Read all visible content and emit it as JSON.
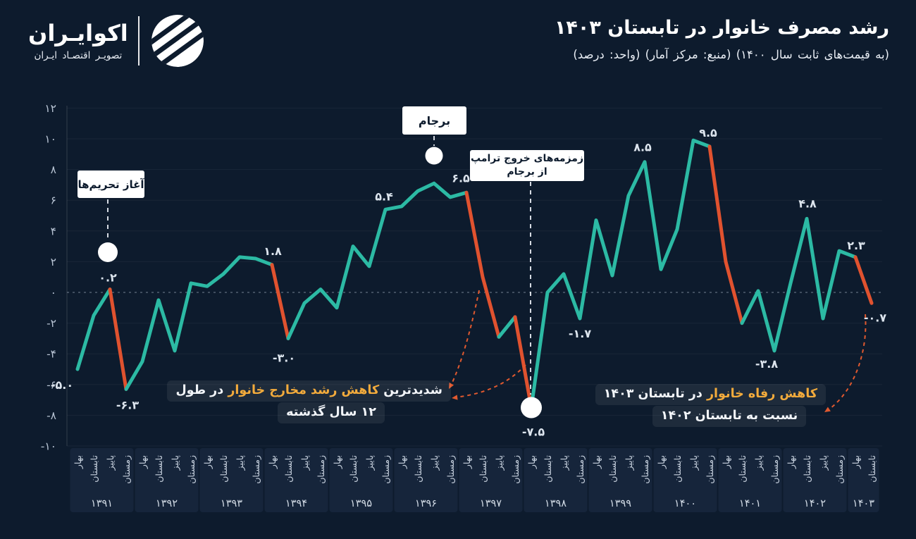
{
  "page": {
    "background": "#0d1b2d",
    "accent_teal": "#2cbaa4",
    "accent_red": "#e0522f",
    "accent_yellow": "#f3ab3c"
  },
  "header": {
    "title": "رشد مصرف خانوار در تابستان ۱۴۰۳",
    "subtitle": "(به قیمت‌های ثابت سال ۱۴۰۰)  (منبع: مرکز آمار)  (واحد: درصد)",
    "logo": {
      "name": "اکوایـران",
      "tagline": "تصویـر اقتصـاد ایـران"
    }
  },
  "annotations": {
    "sanctions": {
      "label": "آغاز تحریم‌ها",
      "dot_point_index": 2
    },
    "jcpoa": {
      "label": "برجام",
      "dot_point_index": 22
    },
    "trump": {
      "line1": "زمزمه‌های خروج ترامپ",
      "line2": "از برجام",
      "dot_point_index": 28
    },
    "bottom_left": {
      "pre": "شدیدترین ",
      "highlight": "کاهش رشد مخارج خانوار",
      "post": " در طول",
      "line2": "۱۲ سال گذشته"
    },
    "bottom_right": {
      "highlight": "کاهش رفاه خانوار",
      "post": " در تابستان ۱۴۰۳",
      "line2": "نسبت به تابستان ۱۴۰۲"
    }
  },
  "chart_data": {
    "type": "line",
    "title": "رشد مصرف خانوار در تابستان ۱۴۰۳",
    "unit": "درصد",
    "source": "مرکز آمار",
    "ylim": [
      -10,
      12
    ],
    "y_ticks": [
      12,
      10,
      8,
      6,
      4,
      2,
      0,
      -2,
      -4,
      -6,
      -8,
      -10
    ],
    "y_tick_labels": [
      "۱۲",
      "۱۰",
      "۸",
      "۶",
      "۴",
      "۲",
      "۰",
      "-۲",
      "-۴",
      "-۶",
      "-۸",
      "-۱۰"
    ],
    "years": [
      {
        "year": "۱۳۹۱",
        "seasons": [
          "بهار",
          "تابستان",
          "پاییز",
          "زمستان"
        ]
      },
      {
        "year": "۱۳۹۲",
        "seasons": [
          "بهار",
          "تابستان",
          "پاییز",
          "زمستان"
        ]
      },
      {
        "year": "۱۳۹۳",
        "seasons": [
          "بهار",
          "تابستان",
          "پاییز",
          "زمستان"
        ]
      },
      {
        "year": "۱۳۹۴",
        "seasons": [
          "بهار",
          "تابستان",
          "پاییز",
          "زمستان"
        ]
      },
      {
        "year": "۱۳۹۵",
        "seasons": [
          "بهار",
          "تابستان",
          "پاییز",
          "زمستان"
        ]
      },
      {
        "year": "۱۳۹۶",
        "seasons": [
          "بهار",
          "تابستان",
          "پاییز",
          "زمستان"
        ]
      },
      {
        "year": "۱۳۹۷",
        "seasons": [
          "بهار",
          "تابستان",
          "پاییز",
          "زمستان"
        ]
      },
      {
        "year": "۱۳۹۸",
        "seasons": [
          "بهار",
          "تابستان",
          "پاییز",
          "زمستان"
        ]
      },
      {
        "year": "۱۳۹۹",
        "seasons": [
          "بهار",
          "تابستان",
          "پاییز",
          "زمستان"
        ]
      },
      {
        "year": "۱۴۰۰",
        "seasons": [
          "بهار",
          "تابستان",
          "پاییز",
          "زمستان"
        ]
      },
      {
        "year": "۱۴۰۱",
        "seasons": [
          "بهار",
          "تابستان",
          "پاییز",
          "زمستان"
        ]
      },
      {
        "year": "۱۴۰۲",
        "seasons": [
          "بهار",
          "تابستان",
          "پاییز",
          "زمستان"
        ]
      },
      {
        "year": "۱۴۰۳",
        "seasons": [
          "بهار",
          "تابستان"
        ]
      }
    ],
    "values": [
      -5.0,
      -1.5,
      0.2,
      -6.3,
      -4.5,
      -0.5,
      -3.8,
      0.6,
      0.4,
      1.2,
      2.3,
      2.2,
      1.8,
      -3.0,
      -0.7,
      0.2,
      -1.0,
      3.0,
      1.7,
      5.4,
      5.6,
      6.6,
      7.1,
      6.2,
      6.5,
      1.0,
      -2.9,
      -1.6,
      -7.5,
      0.0,
      1.2,
      -1.7,
      4.7,
      1.1,
      6.3,
      8.5,
      1.5,
      4.1,
      9.9,
      9.5,
      2.0,
      -2.0,
      0.1,
      -3.8,
      0.6,
      4.8,
      -1.7,
      2.7,
      2.3,
      -0.7
    ],
    "point_labels": {
      "0": "-۵.۰",
      "2": "۰.۲",
      "3": "-۶.۳",
      "12": "۱.۸",
      "13": "-۳.۰",
      "19": "۵.۴",
      "24": "۶.۵",
      "28": "-۷.۵",
      "31": "-۱.۷",
      "35": "۸.۵",
      "39": "۹.۵",
      "43": "-۳.۸",
      "45": "۴.۸",
      "48": "۲.۳",
      "49": "-۰.۷"
    },
    "red_segments": [
      [
        2,
        3
      ],
      [
        12,
        13
      ],
      [
        24,
        26
      ],
      [
        27,
        28
      ],
      [
        39,
        41
      ],
      [
        48,
        49
      ]
    ],
    "colors": {
      "line": "#2cbaa4",
      "drop": "#e0522f",
      "marker": "#ffffff",
      "label": "#dde5ee"
    },
    "legend": "none",
    "grid": "zero-line dashed, faint horizontal gridlines"
  }
}
